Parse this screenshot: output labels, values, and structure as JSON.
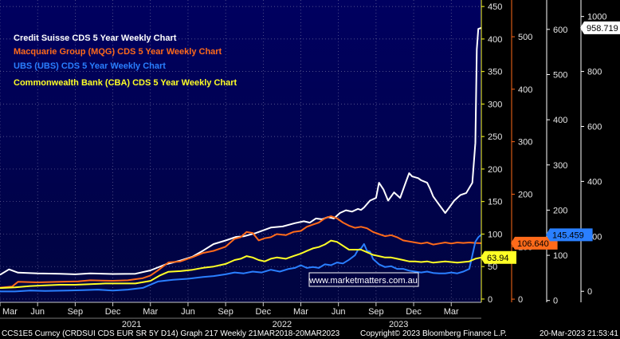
{
  "chart_data": {
    "type": "line",
    "legend": [
      {
        "label": "Credit Suisse CDS 5 Year Weekly Chart",
        "color": "#ffffff"
      },
      {
        "label": "Macquarie Group (MQG) CDS 5 Year Weekly Chart",
        "color": "#ff6a1a"
      },
      {
        "label": "UBS (UBS) CDS 5 Year Weekly Chart",
        "color": "#2a7fff"
      },
      {
        "label": "Commonwealth Bank (CBA) CDS 5 Year Weekly Chart",
        "color": "#ffff26"
      }
    ],
    "x_ticks": [
      "Mar",
      "Jun",
      "Sep",
      "Dec",
      "Mar",
      "Jun",
      "Sep",
      "Dec",
      "Mar",
      "Jun",
      "Sep",
      "Dec",
      "Mar"
    ],
    "x_tick_t": [
      0.0,
      0.25,
      0.5,
      0.75,
      1.0,
      1.25,
      1.5,
      1.75,
      2.0,
      2.25,
      2.5,
      2.75,
      3.0
    ],
    "years": [
      {
        "label": "2021",
        "t": 0.875
      },
      {
        "label": "2022",
        "t": 1.875
      },
      {
        "label": "2023",
        "t": 2.65
      }
    ],
    "axes": [
      {
        "id": "ax1",
        "color": "#ffff26",
        "range": [
          -5,
          460
        ],
        "ticks": [
          0,
          50,
          100,
          150,
          200,
          250,
          300,
          350,
          400,
          450
        ]
      },
      {
        "id": "ax2",
        "color": "#ff6a1a",
        "range": [
          -6,
          570
        ],
        "ticks": [
          0,
          100,
          200,
          300,
          400,
          500
        ]
      },
      {
        "id": "ax3",
        "color": "#ffffff",
        "range": [
          -4,
          665
        ],
        "ticks": [
          0,
          100,
          200,
          300,
          400,
          500,
          600
        ]
      },
      {
        "id": "ax4",
        "color": "#ffffff",
        "range": [
          -40,
          1060
        ],
        "ticks": [
          0,
          200,
          400,
          600,
          800,
          1000
        ]
      }
    ],
    "series": [
      {
        "name": "Credit Suisse CDS 5 Year Weekly Chart",
        "color": "#ffffff",
        "axis": "ax4",
        "last_label": "958.719",
        "points": [
          [
            0,
            60
          ],
          [
            0.06,
            80
          ],
          [
            0.12,
            68
          ],
          [
            0.25,
            65
          ],
          [
            0.4,
            64
          ],
          [
            0.5,
            62
          ],
          [
            0.6,
            65
          ],
          [
            0.75,
            63
          ],
          [
            0.9,
            64
          ],
          [
            1.0,
            76
          ],
          [
            1.1,
            98
          ],
          [
            1.2,
            112
          ],
          [
            1.28,
            126
          ],
          [
            1.35,
            148
          ],
          [
            1.42,
            172
          ],
          [
            1.5,
            185
          ],
          [
            1.57,
            198
          ],
          [
            1.62,
            200
          ],
          [
            1.7,
            212
          ],
          [
            1.8,
            232
          ],
          [
            1.88,
            236
          ],
          [
            1.96,
            248
          ],
          [
            2.02,
            255
          ],
          [
            2.06,
            250
          ],
          [
            2.1,
            265
          ],
          [
            2.14,
            262
          ],
          [
            2.18,
            270
          ],
          [
            2.22,
            265
          ],
          [
            2.26,
            285
          ],
          [
            2.3,
            295
          ],
          [
            2.34,
            290
          ],
          [
            2.38,
            300
          ],
          [
            2.4,
            296
          ],
          [
            2.42,
            305
          ],
          [
            2.46,
            330
          ],
          [
            2.5,
            340
          ],
          [
            2.52,
            395
          ],
          [
            2.55,
            370
          ],
          [
            2.58,
            330
          ],
          [
            2.62,
            360
          ],
          [
            2.66,
            340
          ],
          [
            2.7,
            400
          ],
          [
            2.72,
            430
          ],
          [
            2.74,
            418
          ],
          [
            2.78,
            412
          ],
          [
            2.8,
            404
          ],
          [
            2.84,
            395
          ],
          [
            2.86,
            372
          ],
          [
            2.88,
            345
          ],
          [
            2.92,
            315
          ],
          [
            2.96,
            285
          ],
          [
            2.98,
            300
          ],
          [
            3.02,
            330
          ],
          [
            3.06,
            350
          ],
          [
            3.1,
            358
          ],
          [
            3.14,
            395
          ],
          [
            3.16,
            540
          ],
          [
            3.17,
            880
          ],
          [
            3.18,
            955
          ],
          [
            3.2,
            958.719
          ]
        ]
      },
      {
        "name": "Macquarie Group (MQG) CDS 5 Year Weekly Chart",
        "color": "#ff6a1a",
        "axis": "ax2",
        "last_label": "106.640",
        "points": [
          [
            0,
            22
          ],
          [
            0.08,
            24
          ],
          [
            0.12,
            33
          ],
          [
            0.25,
            32
          ],
          [
            0.4,
            33
          ],
          [
            0.52,
            34
          ],
          [
            0.6,
            36
          ],
          [
            0.75,
            35
          ],
          [
            0.85,
            36
          ],
          [
            0.95,
            40
          ],
          [
            1.0,
            45
          ],
          [
            1.05,
            55
          ],
          [
            1.12,
            70
          ],
          [
            1.2,
            72
          ],
          [
            1.28,
            80
          ],
          [
            1.35,
            88
          ],
          [
            1.42,
            92
          ],
          [
            1.5,
            100
          ],
          [
            1.56,
            115
          ],
          [
            1.6,
            118
          ],
          [
            1.64,
            128
          ],
          [
            1.68,
            126
          ],
          [
            1.72,
            112
          ],
          [
            1.76,
            116
          ],
          [
            1.8,
            118
          ],
          [
            1.84,
            124
          ],
          [
            1.9,
            122
          ],
          [
            1.95,
            128
          ],
          [
            2.0,
            130
          ],
          [
            2.04,
            138
          ],
          [
            2.08,
            142
          ],
          [
            2.12,
            146
          ],
          [
            2.16,
            154
          ],
          [
            2.2,
            158
          ],
          [
            2.24,
            154
          ],
          [
            2.28,
            146
          ],
          [
            2.32,
            140
          ],
          [
            2.36,
            136
          ],
          [
            2.4,
            138
          ],
          [
            2.44,
            135
          ],
          [
            2.48,
            128
          ],
          [
            2.52,
            124
          ],
          [
            2.56,
            120
          ],
          [
            2.6,
            122
          ],
          [
            2.64,
            118
          ],
          [
            2.68,
            112
          ],
          [
            2.72,
            110
          ],
          [
            2.76,
            108
          ],
          [
            2.8,
            106
          ],
          [
            2.84,
            108
          ],
          [
            2.88,
            104
          ],
          [
            2.92,
            106
          ],
          [
            2.96,
            108
          ],
          [
            3.0,
            106
          ],
          [
            3.04,
            108
          ],
          [
            3.08,
            107
          ],
          [
            3.12,
            108
          ],
          [
            3.16,
            107
          ],
          [
            3.2,
            106.64
          ]
        ]
      },
      {
        "name": "UBS (UBS) CDS 5 Year Weekly Chart",
        "color": "#2a7fff",
        "axis": "ax3",
        "last_label": "145.459",
        "points": [
          [
            0,
            20
          ],
          [
            0.1,
            20
          ],
          [
            0.2,
            22
          ],
          [
            0.3,
            21
          ],
          [
            0.45,
            22
          ],
          [
            0.55,
            23
          ],
          [
            0.65,
            24
          ],
          [
            0.75,
            22
          ],
          [
            0.85,
            24
          ],
          [
            0.95,
            28
          ],
          [
            1.05,
            42
          ],
          [
            1.15,
            46
          ],
          [
            1.25,
            48
          ],
          [
            1.35,
            52
          ],
          [
            1.42,
            54
          ],
          [
            1.5,
            58
          ],
          [
            1.56,
            62
          ],
          [
            1.62,
            60
          ],
          [
            1.68,
            64
          ],
          [
            1.74,
            62
          ],
          [
            1.8,
            68
          ],
          [
            1.86,
            64
          ],
          [
            1.92,
            70
          ],
          [
            1.96,
            72
          ],
          [
            2.0,
            78
          ],
          [
            2.04,
            72
          ],
          [
            2.08,
            74
          ],
          [
            2.12,
            72
          ],
          [
            2.16,
            80
          ],
          [
            2.2,
            78
          ],
          [
            2.24,
            84
          ],
          [
            2.28,
            82
          ],
          [
            2.32,
            90
          ],
          [
            2.36,
            100
          ],
          [
            2.38,
            112
          ],
          [
            2.4,
            115
          ],
          [
            2.42,
            125
          ],
          [
            2.44,
            110
          ],
          [
            2.46,
            108
          ],
          [
            2.48,
            92
          ],
          [
            2.52,
            80
          ],
          [
            2.56,
            74
          ],
          [
            2.6,
            76
          ],
          [
            2.64,
            70
          ],
          [
            2.68,
            70
          ],
          [
            2.72,
            66
          ],
          [
            2.76,
            64
          ],
          [
            2.8,
            62
          ],
          [
            2.84,
            64
          ],
          [
            2.88,
            61
          ],
          [
            2.92,
            60
          ],
          [
            2.96,
            60
          ],
          [
            3.0,
            62
          ],
          [
            3.04,
            60
          ],
          [
            3.08,
            64
          ],
          [
            3.12,
            70
          ],
          [
            3.14,
            100
          ],
          [
            3.16,
            130
          ],
          [
            3.18,
            140
          ],
          [
            3.2,
            145.459
          ]
        ]
      },
      {
        "name": "Commonwealth Bank (CBA) CDS 5 Year Weekly Chart",
        "color": "#ffff26",
        "axis": "ax1",
        "last_label": "63.94",
        "points": [
          [
            0,
            17
          ],
          [
            0.1,
            18
          ],
          [
            0.2,
            20
          ],
          [
            0.3,
            21
          ],
          [
            0.4,
            22
          ],
          [
            0.5,
            22
          ],
          [
            0.6,
            23
          ],
          [
            0.7,
            24
          ],
          [
            0.8,
            24
          ],
          [
            0.9,
            24
          ],
          [
            1.0,
            28
          ],
          [
            1.06,
            36
          ],
          [
            1.12,
            42
          ],
          [
            1.2,
            43
          ],
          [
            1.28,
            45
          ],
          [
            1.35,
            48
          ],
          [
            1.42,
            50
          ],
          [
            1.5,
            54
          ],
          [
            1.56,
            60
          ],
          [
            1.6,
            62
          ],
          [
            1.64,
            66
          ],
          [
            1.68,
            64
          ],
          [
            1.72,
            60
          ],
          [
            1.76,
            58
          ],
          [
            1.8,
            62
          ],
          [
            1.84,
            64
          ],
          [
            1.9,
            62
          ],
          [
            1.95,
            66
          ],
          [
            2.0,
            70
          ],
          [
            2.04,
            74
          ],
          [
            2.08,
            78
          ],
          [
            2.12,
            80
          ],
          [
            2.16,
            84
          ],
          [
            2.2,
            90
          ],
          [
            2.24,
            88
          ],
          [
            2.28,
            82
          ],
          [
            2.32,
            76
          ],
          [
            2.36,
            76
          ],
          [
            2.4,
            76
          ],
          [
            2.44,
            72
          ],
          [
            2.48,
            68
          ],
          [
            2.52,
            66
          ],
          [
            2.56,
            64
          ],
          [
            2.6,
            64
          ],
          [
            2.64,
            62
          ],
          [
            2.68,
            60
          ],
          [
            2.72,
            58
          ],
          [
            2.76,
            58
          ],
          [
            2.8,
            57
          ],
          [
            2.84,
            58
          ],
          [
            2.88,
            56
          ],
          [
            2.92,
            57
          ],
          [
            2.96,
            58
          ],
          [
            3.0,
            57
          ],
          [
            3.04,
            56
          ],
          [
            3.08,
            57
          ],
          [
            3.12,
            58
          ],
          [
            3.16,
            62
          ],
          [
            3.2,
            63.94
          ]
        ]
      }
    ],
    "watermark": "www.marketmatters.com.au",
    "footer": {
      "left": "CCS1E5 Curncy (CRDSUI CDS EUR SR 5Y D14) Graph 217  Weekly 21MAR2018-20MAR2023",
      "center": "Copyright© 2023 Bloomberg Finance L.P.",
      "right": "20-Mar-2023 21:53:41"
    }
  }
}
